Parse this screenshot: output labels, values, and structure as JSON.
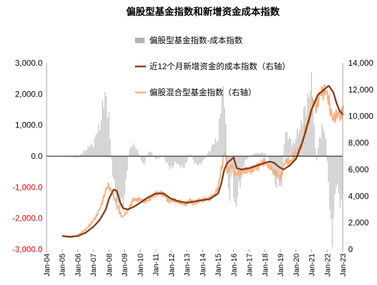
{
  "chart_data": {
    "type": "bar+line",
    "title": "偏股型基金指数和新增资金成本指数",
    "legend_placement": "top-center",
    "legend": [
      {
        "key": "diff",
        "label": "偏股型基金指数-成本指数"
      },
      {
        "key": "cost",
        "label": "近12个月新增资金的成本指数（右轴）"
      },
      {
        "key": "fund",
        "label": "偏股混合型基金指数（右轴）"
      }
    ],
    "colors": {
      "diff": "#b3b3b3",
      "cost": "#8b3a0f",
      "fund": "#f4b183",
      "left_axis_positive": "#000000",
      "left_axis_negative": "#ff0000",
      "zero_line": "#000000"
    },
    "x_axis": {
      "tick_labels": [
        "Jan-04",
        "Jan-05",
        "Jan-06",
        "Jan-07",
        "Jan-08",
        "Jan-09",
        "Jan-10",
        "Jan-11",
        "Jan-12",
        "Jan-13",
        "Jan-14",
        "Jan-15",
        "Jan-16",
        "Jan-17",
        "Jan-18",
        "Jan-19",
        "Jan-20",
        "Jan-21",
        "Jan-22",
        "Jan-23"
      ],
      "range": [
        2004.0,
        2023.0
      ]
    },
    "left_axis": {
      "ticks": [
        3000,
        2000,
        1000,
        0,
        -1000,
        -2000,
        -3000
      ],
      "tick_labels": [
        "3,000.0",
        "2,000.0",
        "1,000.0",
        "0.0",
        "-1,000.0",
        "-2,000.0",
        "-3,000.0"
      ],
      "range": [
        -3000,
        3000
      ]
    },
    "right_axis": {
      "ticks": [
        0,
        2000,
        4000,
        6000,
        8000,
        10000,
        12000,
        14000
      ],
      "tick_labels": [
        "0",
        "2,000",
        "4,000",
        "6,000",
        "8,000",
        "10,000",
        "12,000",
        "14,000"
      ],
      "range": [
        0,
        14000
      ]
    },
    "series": [
      {
        "key": "fund",
        "points": [
          [
            2005.0,
            1000
          ],
          [
            2005.3,
            950
          ],
          [
            2005.5,
            920
          ],
          [
            2005.8,
            980
          ],
          [
            2006.0,
            1050
          ],
          [
            2006.3,
            1300
          ],
          [
            2006.6,
            1600
          ],
          [
            2006.9,
            2000
          ],
          [
            2007.2,
            2500
          ],
          [
            2007.5,
            3300
          ],
          [
            2007.8,
            4400
          ],
          [
            2007.92,
            4800
          ],
          [
            2008.1,
            4500
          ],
          [
            2008.3,
            4000
          ],
          [
            2008.5,
            3400
          ],
          [
            2008.7,
            2800
          ],
          [
            2008.85,
            2400
          ],
          [
            2009.0,
            2600
          ],
          [
            2009.3,
            3100
          ],
          [
            2009.6,
            3800
          ],
          [
            2009.8,
            3700
          ],
          [
            2010.0,
            3750
          ],
          [
            2010.4,
            3600
          ],
          [
            2010.8,
            4000
          ],
          [
            2011.0,
            4100
          ],
          [
            2011.3,
            4300
          ],
          [
            2011.6,
            4000
          ],
          [
            2011.9,
            3600
          ],
          [
            2012.2,
            3700
          ],
          [
            2012.6,
            3500
          ],
          [
            2012.9,
            3400
          ],
          [
            2013.2,
            3700
          ],
          [
            2013.5,
            3400
          ],
          [
            2013.8,
            3700
          ],
          [
            2014.0,
            3700
          ],
          [
            2014.4,
            3800
          ],
          [
            2014.8,
            4100
          ],
          [
            2015.0,
            4700
          ],
          [
            2015.3,
            6500
          ],
          [
            2015.45,
            7500
          ],
          [
            2015.6,
            5800
          ],
          [
            2015.9,
            6400
          ],
          [
            2016.1,
            5600
          ],
          [
            2016.5,
            5800
          ],
          [
            2016.8,
            5900
          ],
          [
            2017.2,
            6000
          ],
          [
            2017.6,
            6300
          ],
          [
            2018.0,
            6600
          ],
          [
            2018.5,
            6000
          ],
          [
            2018.9,
            5500
          ],
          [
            2019.0,
            5400
          ],
          [
            2019.3,
            6600
          ],
          [
            2019.7,
            6600
          ],
          [
            2020.0,
            7300
          ],
          [
            2020.3,
            7600
          ],
          [
            2020.6,
            9000
          ],
          [
            2020.9,
            9800
          ],
          [
            2021.1,
            11300
          ],
          [
            2021.3,
            10700
          ],
          [
            2021.6,
            11800
          ],
          [
            2021.9,
            12000
          ],
          [
            2022.05,
            11500
          ],
          [
            2022.3,
            10000
          ],
          [
            2022.45,
            9800
          ],
          [
            2022.7,
            10200
          ],
          [
            2022.9,
            10100
          ],
          [
            2023.05,
            10500
          ]
        ]
      },
      {
        "key": "cost",
        "points": [
          [
            2005.0,
            1000
          ],
          [
            2005.5,
            950
          ],
          [
            2006.0,
            1000
          ],
          [
            2006.5,
            1250
          ],
          [
            2007.0,
            1700
          ],
          [
            2007.4,
            2200
          ],
          [
            2007.8,
            3000
          ],
          [
            2008.0,
            3800
          ],
          [
            2008.3,
            4500
          ],
          [
            2008.5,
            4400
          ],
          [
            2008.7,
            3600
          ],
          [
            2008.9,
            3100
          ],
          [
            2009.2,
            3000
          ],
          [
            2009.6,
            3200
          ],
          [
            2010.0,
            3500
          ],
          [
            2010.5,
            3900
          ],
          [
            2011.0,
            4200
          ],
          [
            2011.5,
            4200
          ],
          [
            2012.0,
            3800
          ],
          [
            2012.5,
            3600
          ],
          [
            2013.0,
            3500
          ],
          [
            2013.5,
            3600
          ],
          [
            2014.0,
            3700
          ],
          [
            2014.5,
            3800
          ],
          [
            2015.0,
            4200
          ],
          [
            2015.2,
            4900
          ],
          [
            2015.4,
            6000
          ],
          [
            2015.6,
            6500
          ],
          [
            2015.8,
            6700
          ],
          [
            2016.0,
            6900
          ],
          [
            2016.2,
            6100
          ],
          [
            2016.5,
            6000
          ],
          [
            2017.0,
            6100
          ],
          [
            2017.5,
            6300
          ],
          [
            2018.0,
            6500
          ],
          [
            2018.3,
            6600
          ],
          [
            2018.6,
            6500
          ],
          [
            2018.9,
            6200
          ],
          [
            2019.2,
            6000
          ],
          [
            2019.6,
            6300
          ],
          [
            2020.0,
            6800
          ],
          [
            2020.4,
            8000
          ],
          [
            2020.7,
            9200
          ],
          [
            2021.0,
            10500
          ],
          [
            2021.4,
            11600
          ],
          [
            2021.8,
            12000
          ],
          [
            2022.1,
            12300
          ],
          [
            2022.4,
            11800
          ],
          [
            2022.6,
            11000
          ],
          [
            2022.8,
            10400
          ],
          [
            2023.05,
            10100
          ]
        ]
      }
    ],
    "diff_bars": {
      "note": "monthly bars, left axis units",
      "keypoints": [
        [
          2005.0,
          0
        ],
        [
          2006.0,
          -40
        ],
        [
          2006.6,
          250
        ],
        [
          2007.0,
          400
        ],
        [
          2007.4,
          1000
        ],
        [
          2007.7,
          1800
        ],
        [
          2007.85,
          2000
        ],
        [
          2008.0,
          1200
        ],
        [
          2008.15,
          0
        ],
        [
          2008.3,
          -900
        ],
        [
          2008.6,
          -1700
        ],
        [
          2008.8,
          -1800
        ],
        [
          2009.0,
          -1200
        ],
        [
          2009.3,
          200
        ],
        [
          2009.6,
          400
        ],
        [
          2009.9,
          100
        ],
        [
          2010.2,
          -300
        ],
        [
          2010.6,
          200
        ],
        [
          2011.0,
          -100
        ],
        [
          2011.5,
          0
        ],
        [
          2011.9,
          -400
        ],
        [
          2012.3,
          -200
        ],
        [
          2012.8,
          -400
        ],
        [
          2013.2,
          100
        ],
        [
          2013.6,
          -300
        ],
        [
          2014.0,
          -200
        ],
        [
          2014.6,
          300
        ],
        [
          2015.0,
          600
        ],
        [
          2015.2,
          1600
        ],
        [
          2015.4,
          2400
        ],
        [
          2015.55,
          200
        ],
        [
          2015.7,
          -1500
        ],
        [
          2015.9,
          -500
        ],
        [
          2016.1,
          -1700
        ],
        [
          2016.4,
          -900
        ],
        [
          2016.7,
          -200
        ],
        [
          2017.0,
          0
        ],
        [
          2017.5,
          100
        ],
        [
          2018.0,
          100
        ],
        [
          2018.3,
          -100
        ],
        [
          2018.6,
          -800
        ],
        [
          2018.9,
          -900
        ],
        [
          2019.1,
          -1100
        ],
        [
          2019.3,
          900
        ],
        [
          2019.6,
          500
        ],
        [
          2019.9,
          400
        ],
        [
          2020.2,
          900
        ],
        [
          2020.5,
          1300
        ],
        [
          2020.7,
          1800
        ],
        [
          2021.0,
          2200
        ],
        [
          2021.1,
          1800
        ],
        [
          2021.3,
          -300
        ],
        [
          2021.5,
          600
        ],
        [
          2021.7,
          1000
        ],
        [
          2021.9,
          600
        ],
        [
          2022.1,
          -1000
        ],
        [
          2022.3,
          -2600
        ],
        [
          2022.45,
          -2000
        ],
        [
          2022.6,
          -700
        ],
        [
          2022.8,
          -1300
        ],
        [
          2022.95,
          -2100
        ],
        [
          2023.05,
          -300
        ]
      ]
    }
  }
}
